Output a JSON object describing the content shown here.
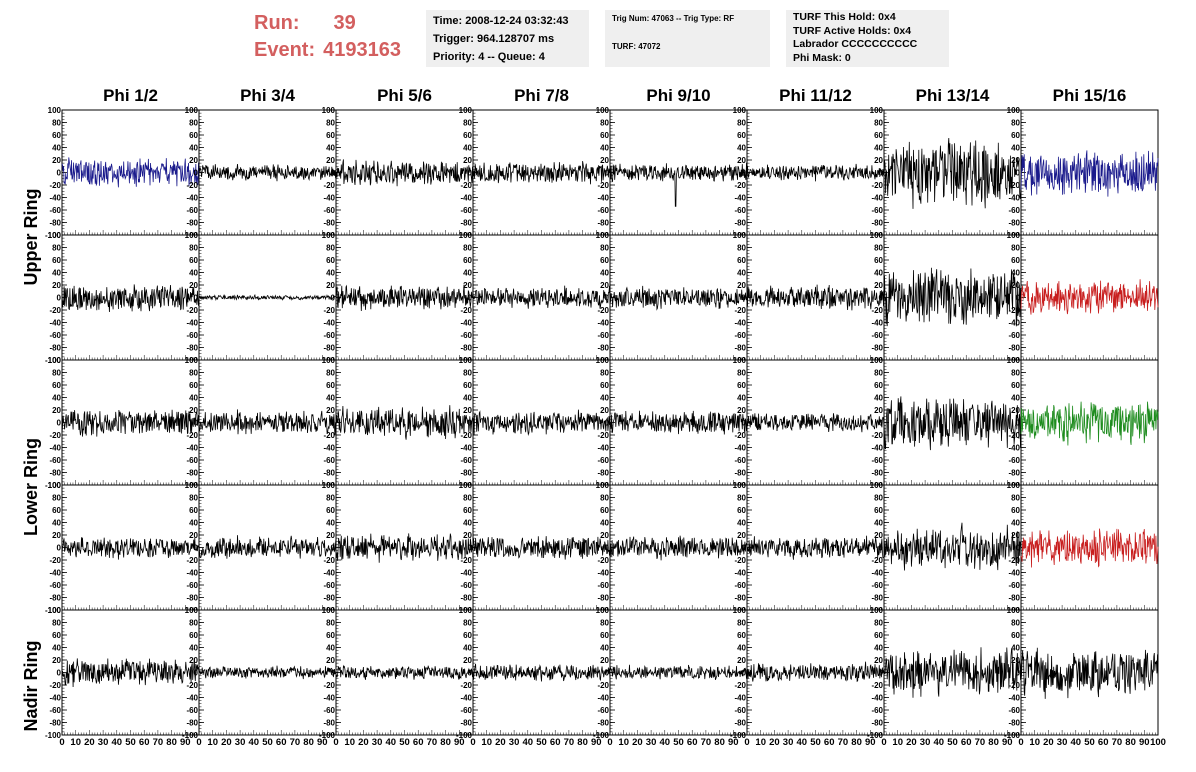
{
  "header": {
    "run_label": "Run:",
    "run_value": "39",
    "event_label": "Event:",
    "event_value": "4193163"
  },
  "info_boxes": {
    "time": {
      "time_line": "Time: 2008-12-24 03:32:43",
      "trigger_line": "Trigger: 964.128707 ms",
      "priority_line": "Priority: 4 -- Queue: 4"
    },
    "trig": {
      "trig_line": "Trig Num: 47063 -- Trig Type: RF",
      "turf_line": "TURF: 47072"
    },
    "turf": {
      "hold_line": "TURF This Hold: 0x4",
      "active_line": "TURF Active Holds: 0x4",
      "labrador_line": "Labrador CCCCCCCCCC",
      "mask_line": "Phi Mask: 0"
    }
  },
  "row_labels": [
    "Upper Ring",
    "Lower Ring",
    "Nadir Ring"
  ],
  "chart_data": {
    "type": "line",
    "columns": [
      "Phi 1/2",
      "Phi 3/4",
      "Phi 5/6",
      "Phi 7/8",
      "Phi 9/10",
      "Phi 11/12",
      "Phi 13/14",
      "Phi 15/16"
    ],
    "rows": 5,
    "xlim": [
      0,
      100
    ],
    "ylim": [
      -100,
      100
    ],
    "x_ticks": [
      0,
      10,
      20,
      30,
      40,
      50,
      60,
      70,
      80,
      90,
      100
    ],
    "y_ticks": [
      -100,
      -80,
      -60,
      -40,
      -20,
      0,
      20,
      40,
      60,
      80,
      100
    ],
    "colors": {
      "default": "#000000",
      "blue": "#1a1a8c",
      "red": "#c81e1e",
      "green": "#1e8c1e"
    },
    "panels": [
      [
        {
          "amp": 18,
          "color": "blue"
        },
        {
          "amp": 10,
          "color": "default"
        },
        {
          "amp": 16,
          "color": "default"
        },
        {
          "amp": 14,
          "color": "default"
        },
        {
          "amp": 12,
          "color": "default",
          "spike": 48
        },
        {
          "amp": 11,
          "color": "default"
        },
        {
          "amp": 42,
          "color": "default"
        },
        {
          "amp": 28,
          "color": "blue"
        }
      ],
      [
        {
          "amp": 18,
          "color": "default"
        },
        {
          "amp": 3,
          "color": "default"
        },
        {
          "amp": 16,
          "color": "default"
        },
        {
          "amp": 14,
          "color": "default"
        },
        {
          "amp": 14,
          "color": "default"
        },
        {
          "amp": 15,
          "color": "default"
        },
        {
          "amp": 38,
          "color": "default"
        },
        {
          "amp": 22,
          "color": "red"
        }
      ],
      [
        {
          "amp": 18,
          "color": "default"
        },
        {
          "amp": 15,
          "color": "default"
        },
        {
          "amp": 20,
          "color": "default"
        },
        {
          "amp": 15,
          "color": "default"
        },
        {
          "amp": 15,
          "color": "default"
        },
        {
          "amp": 12,
          "color": "default"
        },
        {
          "amp": 34,
          "color": "default"
        },
        {
          "amp": 26,
          "color": "green"
        }
      ],
      [
        {
          "amp": 14,
          "color": "default"
        },
        {
          "amp": 14,
          "color": "default"
        },
        {
          "amp": 18,
          "color": "default"
        },
        {
          "amp": 15,
          "color": "default"
        },
        {
          "amp": 14,
          "color": "default"
        },
        {
          "amp": 14,
          "color": "default"
        },
        {
          "amp": 28,
          "color": "default"
        },
        {
          "amp": 24,
          "color": "red"
        }
      ],
      [
        {
          "amp": 18,
          "color": "default"
        },
        {
          "amp": 8,
          "color": "default"
        },
        {
          "amp": 9,
          "color": "default"
        },
        {
          "amp": 12,
          "color": "default"
        },
        {
          "amp": 9,
          "color": "default"
        },
        {
          "amp": 12,
          "color": "default"
        },
        {
          "amp": 30,
          "color": "default"
        },
        {
          "amp": 30,
          "color": "default"
        }
      ]
    ]
  }
}
